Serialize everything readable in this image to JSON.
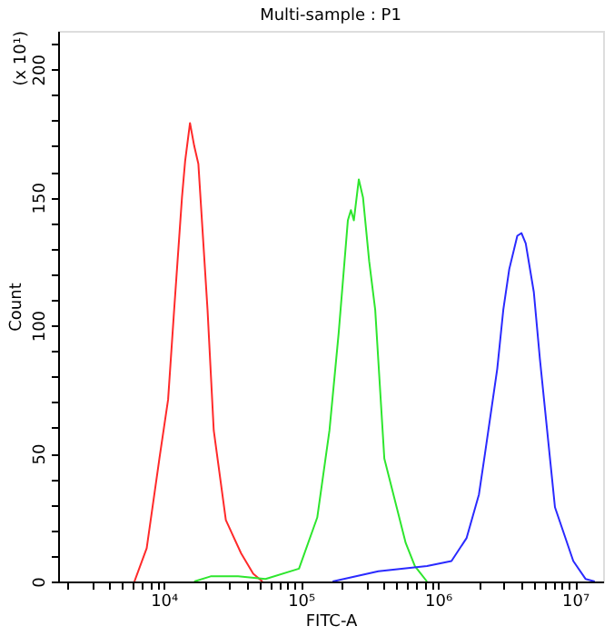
{
  "chart_data": {
    "type": "line",
    "title": "Multi-sample : P1",
    "xlabel": "FITC-A",
    "ylabel": "Count",
    "annotations": [
      "(x 10¹)"
    ],
    "log": "x",
    "grid": false,
    "xlim": [
      1700,
      16000000
    ],
    "xticks": [
      {
        "value": 2000,
        "label": null
      },
      {
        "value": 3000,
        "label": null
      },
      {
        "value": 4000,
        "label": null
      },
      {
        "value": 5000,
        "label": null
      },
      {
        "value": 6000,
        "label": null
      },
      {
        "value": 7000,
        "label": null
      },
      {
        "value": 8000,
        "label": null
      },
      {
        "value": 9000,
        "label": null
      },
      {
        "value": 10000,
        "label": "10⁴"
      },
      {
        "value": 20000,
        "label": null
      },
      {
        "value": 30000,
        "label": null
      },
      {
        "value": 40000,
        "label": null
      },
      {
        "value": 50000,
        "label": null
      },
      {
        "value": 60000,
        "label": null
      },
      {
        "value": 70000,
        "label": null
      },
      {
        "value": 80000,
        "label": null
      },
      {
        "value": 90000,
        "label": null
      },
      {
        "value": 100000,
        "label": "10⁵"
      },
      {
        "value": 200000,
        "label": null
      },
      {
        "value": 300000,
        "label": null
      },
      {
        "value": 400000,
        "label": null
      },
      {
        "value": 500000,
        "label": null
      },
      {
        "value": 600000,
        "label": null
      },
      {
        "value": 700000,
        "label": null
      },
      {
        "value": 800000,
        "label": null
      },
      {
        "value": 900000,
        "label": null
      },
      {
        "value": 1000000,
        "label": "10⁶"
      },
      {
        "value": 2000000,
        "label": null
      },
      {
        "value": 3000000,
        "label": null
      },
      {
        "value": 4000000,
        "label": null
      },
      {
        "value": 5000000,
        "label": null
      },
      {
        "value": 6000000,
        "label": null
      },
      {
        "value": 7000000,
        "label": null
      },
      {
        "value": 8000000,
        "label": null
      },
      {
        "value": 9000000,
        "label": null
      },
      {
        "value": 10000000,
        "label": "10⁷"
      }
    ],
    "ylim": [
      0,
      215
    ],
    "yticks": [
      0,
      {
        "value": 10,
        "label": null
      },
      {
        "value": 20,
        "label": null
      },
      {
        "value": 30,
        "label": null
      },
      {
        "value": 40,
        "label": null
      },
      50,
      {
        "value": 60,
        "label": null
      },
      {
        "value": 70,
        "label": null
      },
      {
        "value": 80,
        "label": null
      },
      {
        "value": 90,
        "label": null
      },
      100,
      {
        "value": 110,
        "label": null
      },
      {
        "value": 120,
        "label": null
      },
      {
        "value": 130,
        "label": null
      },
      {
        "value": 140,
        "label": null
      },
      150,
      {
        "value": 160,
        "label": null
      },
      {
        "value": 170,
        "label": null
      },
      {
        "value": 180,
        "label": null
      },
      {
        "value": 190,
        "label": null
      },
      200,
      {
        "value": 210,
        "label": null
      }
    ],
    "series": [
      {
        "color": "#ff2a2a",
        "x": [
          6120,
          7520,
          9310,
          10770,
          11920,
          13600,
          14330,
          15560,
          16710,
          17910,
          20890,
          23180,
          28400,
          36700,
          45000,
          52500
        ],
        "values": [
          0,
          13,
          48,
          71,
          106,
          150,
          164,
          179,
          170,
          163,
          106,
          59,
          24,
          11,
          3,
          0
        ]
      },
      {
        "color": "#2ee62e",
        "x": [
          16700,
          22000,
          34900,
          55300,
          97000,
          131800,
          161800,
          188800,
          220300,
          231900,
          243600,
          264800,
          284000,
          315200,
          348800,
          406400,
          499800,
          582100,
          679000,
          831800
        ],
        "values": [
          0,
          2,
          2,
          1,
          5,
          25,
          59,
          97,
          141,
          145,
          141,
          157,
          150,
          125,
          106,
          48,
          29,
          15,
          6,
          0
        ]
      },
      {
        "color": "#2a2aff",
        "x": [
          170600,
          367500,
          831800,
          1255000,
          1618000,
          1990000,
          2203000,
          2705000,
          2994000,
          3311000,
          3790000,
          4066000,
          4365000,
          5000000,
          5534000,
          7129000,
          9700000,
          11910000,
          13900000
        ],
        "values": [
          0,
          4,
          6,
          8,
          17,
          34,
          50,
          83,
          106,
          122,
          135,
          136,
          132,
          113,
          87,
          29,
          8,
          1,
          0
        ]
      }
    ]
  }
}
